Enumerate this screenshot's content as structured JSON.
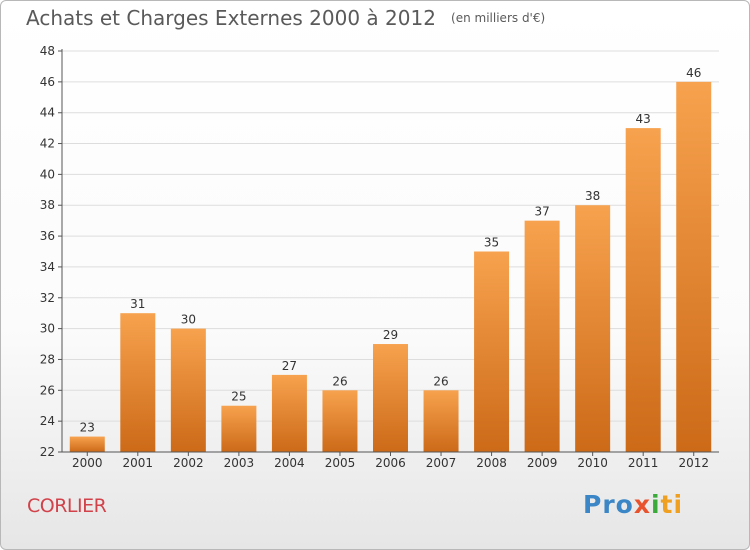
{
  "title": "Achats et Charges Externes 2000 à 2012",
  "unit": "(en milliers d'€)",
  "commune": "CORLIER",
  "logo": {
    "parts": [
      "Pro",
      "x",
      "i",
      "ti"
    ]
  },
  "colors": {
    "bar_top": "#f7a24e",
    "bar_bottom": "#cc6a18",
    "grid": "#dddddd",
    "axis": "#555555"
  },
  "chart_data": {
    "type": "bar",
    "categories": [
      "2000",
      "2001",
      "2002",
      "2003",
      "2004",
      "2005",
      "2006",
      "2007",
      "2008",
      "2009",
      "2010",
      "2011",
      "2012"
    ],
    "values": [
      23,
      31,
      30,
      25,
      27,
      26,
      29,
      26,
      35,
      37,
      38,
      43,
      46
    ],
    "title": "Achats et Charges Externes 2000 à 2012",
    "xlabel": "",
    "ylabel": "",
    "ylim": [
      22,
      48
    ],
    "yticks": [
      22,
      24,
      26,
      28,
      30,
      32,
      34,
      36,
      38,
      40,
      42,
      44,
      46,
      48
    ],
    "grid": "horizontal",
    "data_labels": true
  }
}
